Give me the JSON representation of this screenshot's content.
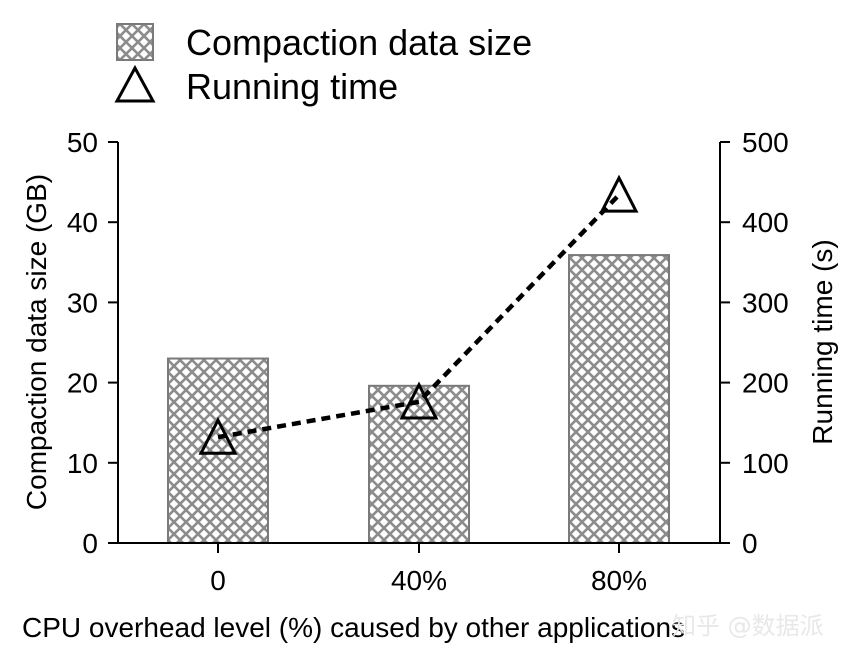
{
  "chart_data": {
    "type": "bar",
    "categories": [
      "0",
      "40%",
      "80%"
    ],
    "series": [
      {
        "name": "Compaction data size",
        "axis": "left",
        "kind": "bar",
        "values": [
          23,
          19.6,
          35.9
        ]
      },
      {
        "name": "Running time",
        "axis": "right",
        "kind": "line",
        "marker": "triangle",
        "style": "dashed",
        "values": [
          132,
          176,
          434
        ]
      }
    ],
    "xlabel": "CPU overhead level (%) caused by other applications",
    "ylabel": "Compaction data size (GB)",
    "y2label": "Running time (s)",
    "ylim": [
      0,
      50
    ],
    "y2lim": [
      0,
      500
    ],
    "yticks": [
      0,
      10,
      20,
      30,
      40,
      50
    ],
    "y2ticks": [
      0,
      100,
      200,
      300,
      400,
      500
    ],
    "legend": {
      "position": "top-left",
      "entries": [
        "Compaction data size",
        "Running time"
      ]
    },
    "colors": {
      "bar_pattern": "#8c8c8c",
      "bar_edge": "#7a7a7a",
      "line": "#000000"
    },
    "watermark": "知乎 @数据派"
  }
}
